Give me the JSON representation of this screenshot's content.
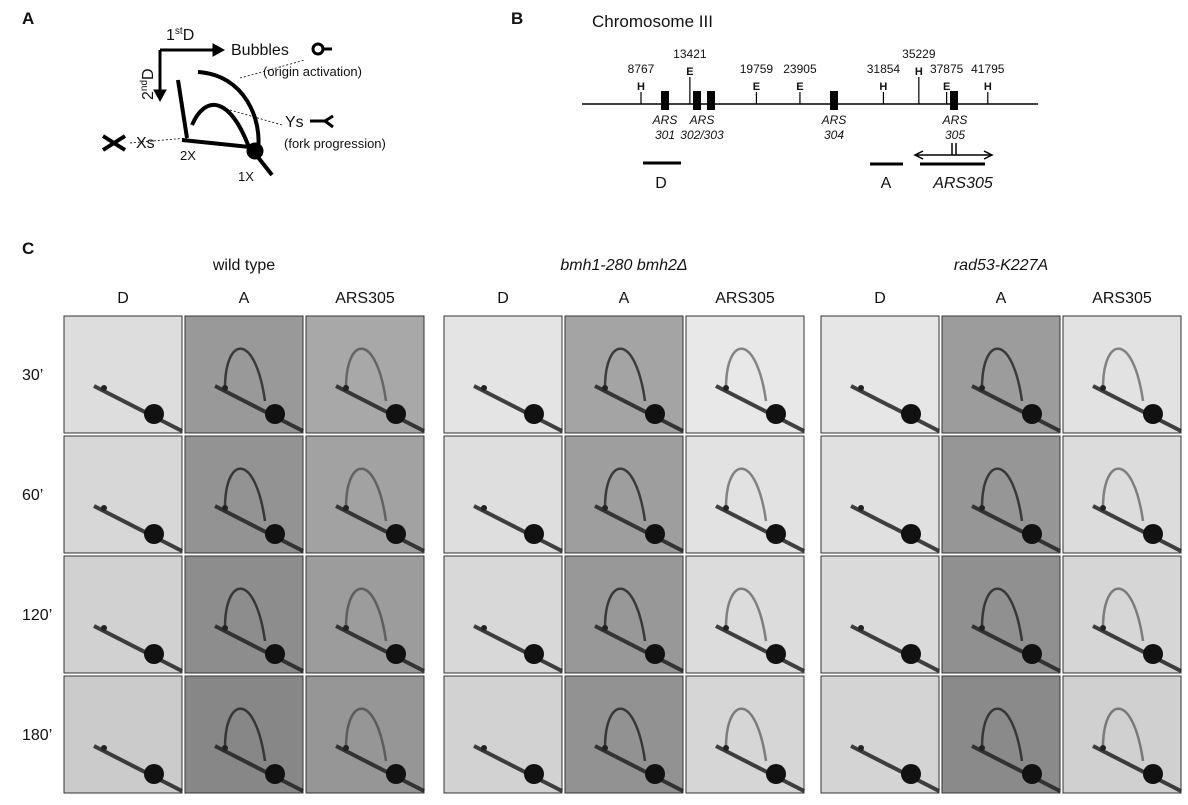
{
  "panel_a": {
    "label": "A",
    "first_d": {
      "n": "1",
      "sup": "st",
      "d": "D"
    },
    "second_d": {
      "n": "2",
      "sup": "nd",
      "d": "D"
    },
    "bubbles": "Bubbles",
    "bubbles_note": "(origin activation)",
    "ys": "Ys",
    "ys_note": "(fork progression)",
    "xs": "Xs",
    "two_x": "2X",
    "one_x": "1X"
  },
  "panel_b": {
    "label": "B",
    "title": "Chromosome III",
    "sites": [
      {
        "position": "8767",
        "enzyme": "H"
      },
      {
        "position": "13421",
        "enzyme": "E"
      },
      {
        "position": "19759",
        "enzyme": "E"
      },
      {
        "position": "23905",
        "enzyme": "E"
      },
      {
        "position": "31854",
        "enzyme": "H"
      },
      {
        "position": "35229",
        "enzyme": "H"
      },
      {
        "position": "37875",
        "enzyme": "E"
      },
      {
        "position": "41795",
        "enzyme": "H"
      }
    ],
    "origins": [
      [
        "ARS",
        "301"
      ],
      [
        "ARS",
        "302/303"
      ],
      [
        "ARS",
        "304"
      ],
      [
        "ARS",
        "305"
      ]
    ],
    "probes": [
      "D",
      "A",
      "ARS305"
    ]
  },
  "panel_c": {
    "label": "C",
    "strains": [
      "wild type",
      "bmh1-280 bmh2Δ",
      "rad53-K227A"
    ],
    "probes": [
      "D",
      "A",
      "ARS305"
    ],
    "times": [
      "30’",
      "60’",
      "120’",
      "180’"
    ]
  }
}
